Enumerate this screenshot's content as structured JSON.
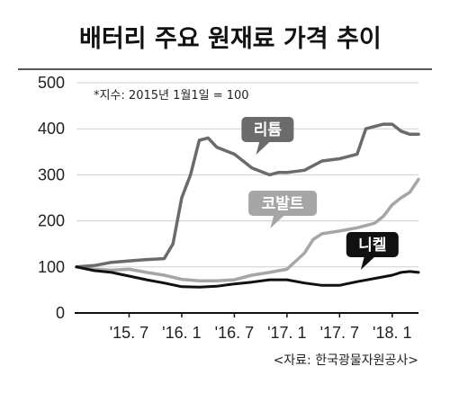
{
  "chart_data": {
    "type": "line",
    "title": "배터리 주요 원재료 가격 추이",
    "note": "*지수: 2015년 1월1일 = 100",
    "source": "<자료: 한국광물자원공사>",
    "ylim": [
      0,
      500
    ],
    "yticks": [
      "0",
      "100",
      "200",
      "300",
      "400",
      "500"
    ],
    "xlim": [
      "2015-01",
      "2018-04"
    ],
    "xticks": [
      {
        "label": "'15. 7",
        "x": "2015-07"
      },
      {
        "label": "'16. 1",
        "x": "2016-01"
      },
      {
        "label": "'16. 7",
        "x": "2016-07"
      },
      {
        "label": "'17. 1",
        "x": "2017-01"
      },
      {
        "label": "'17. 7",
        "x": "2017-07"
      },
      {
        "label": "'18. 1",
        "x": "2018-01"
      }
    ],
    "grid": "horizontal",
    "series": [
      {
        "name": "리튬",
        "color": "#6b6b6b",
        "label_at": "2016-11",
        "x": [
          "2015-01",
          "2015-03",
          "2015-05",
          "2015-07",
          "2015-09",
          "2015-11",
          "2015-12",
          "2016-01",
          "2016-02",
          "2016-03",
          "2016-04",
          "2016-05",
          "2016-07",
          "2016-09",
          "2016-11",
          "2016-12",
          "2017-01",
          "2017-03",
          "2017-05",
          "2017-07",
          "2017-09",
          "2017-10",
          "2017-11",
          "2017-12",
          "2018-01",
          "2018-02",
          "2018-03",
          "2018-04"
        ],
        "values": [
          100,
          103,
          110,
          113,
          116,
          118,
          150,
          250,
          300,
          375,
          380,
          360,
          345,
          315,
          300,
          305,
          305,
          310,
          330,
          335,
          345,
          400,
          405,
          410,
          410,
          395,
          388,
          388
        ]
      },
      {
        "name": "코발트",
        "color": "#a6a6a6",
        "label_at": "2016-12",
        "x": [
          "2015-01",
          "2015-03",
          "2015-05",
          "2015-07",
          "2015-09",
          "2015-11",
          "2016-01",
          "2016-03",
          "2016-05",
          "2016-07",
          "2016-09",
          "2016-11",
          "2017-01",
          "2017-03",
          "2017-04",
          "2017-05",
          "2017-07",
          "2017-09",
          "2017-11",
          "2017-12",
          "2018-01",
          "2018-02",
          "2018-03",
          "2018-04"
        ],
        "values": [
          100,
          95,
          93,
          95,
          88,
          82,
          73,
          70,
          70,
          72,
          82,
          88,
          95,
          130,
          160,
          172,
          178,
          185,
          195,
          210,
          235,
          250,
          262,
          290
        ]
      },
      {
        "name": "니켈",
        "color": "#111111",
        "label_at": "2018-01",
        "x": [
          "2015-01",
          "2015-03",
          "2015-05",
          "2015-07",
          "2015-09",
          "2015-11",
          "2016-01",
          "2016-03",
          "2016-05",
          "2016-07",
          "2016-09",
          "2016-11",
          "2017-01",
          "2017-03",
          "2017-05",
          "2017-07",
          "2017-09",
          "2017-11",
          "2018-01",
          "2018-02",
          "2018-03",
          "2018-04"
        ],
        "values": [
          100,
          92,
          88,
          80,
          72,
          65,
          57,
          56,
          58,
          63,
          67,
          72,
          72,
          65,
          60,
          60,
          68,
          75,
          82,
          88,
          90,
          88
        ]
      }
    ]
  }
}
